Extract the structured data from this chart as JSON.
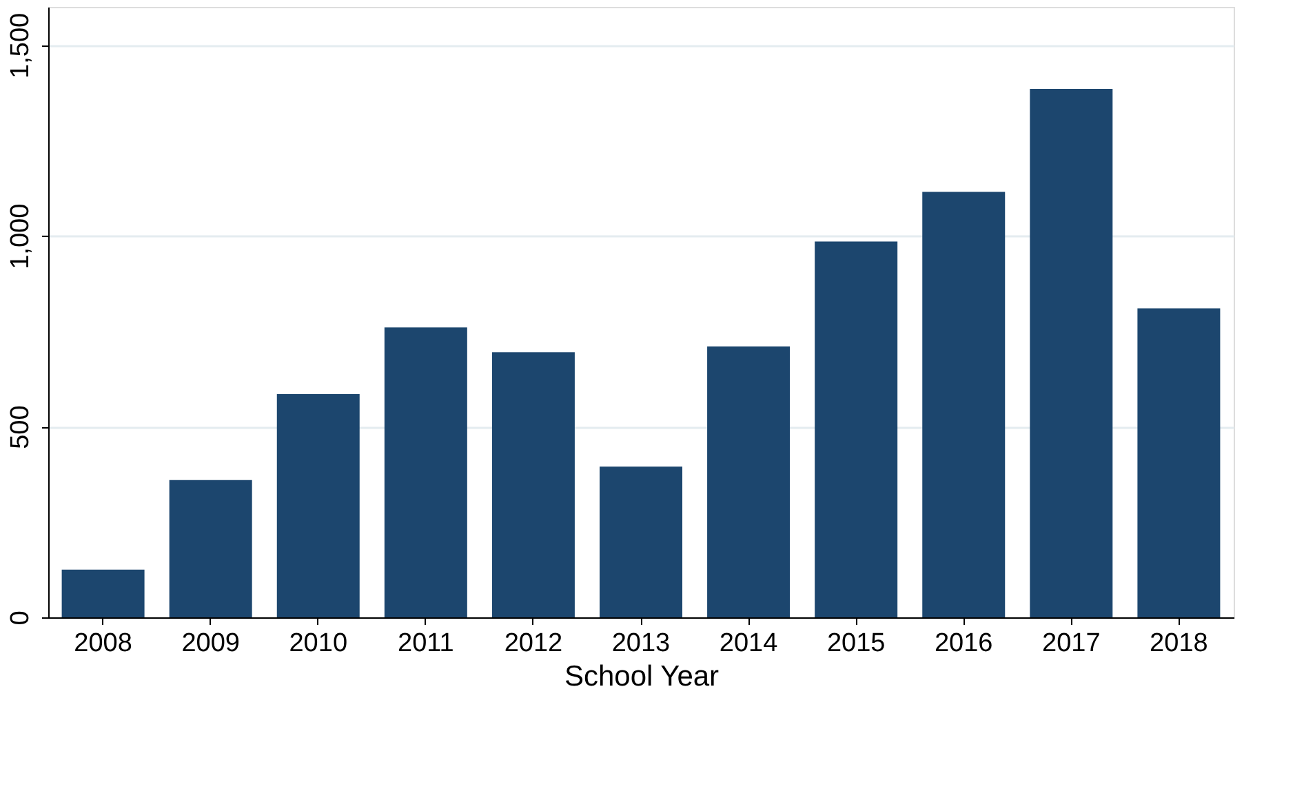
{
  "chart_data": {
    "type": "bar",
    "xlabel": "School Year",
    "categories": [
      "2008",
      "2009",
      "2010",
      "2011",
      "2012",
      "2013",
      "2014",
      "2015",
      "2016",
      "2017",
      "2018"
    ],
    "values": [
      125,
      360,
      585,
      760,
      695,
      395,
      710,
      985,
      1115,
      1385,
      810
    ],
    "color": "#1c466e",
    "ylim": [
      0,
      1600
    ],
    "yticks": [
      0,
      {
        "value": 500,
        "label": "500"
      },
      {
        "value": 1000,
        "label": "1,000"
      },
      {
        "value": 1500,
        "label": "1,500"
      }
    ],
    "grid": "y"
  }
}
